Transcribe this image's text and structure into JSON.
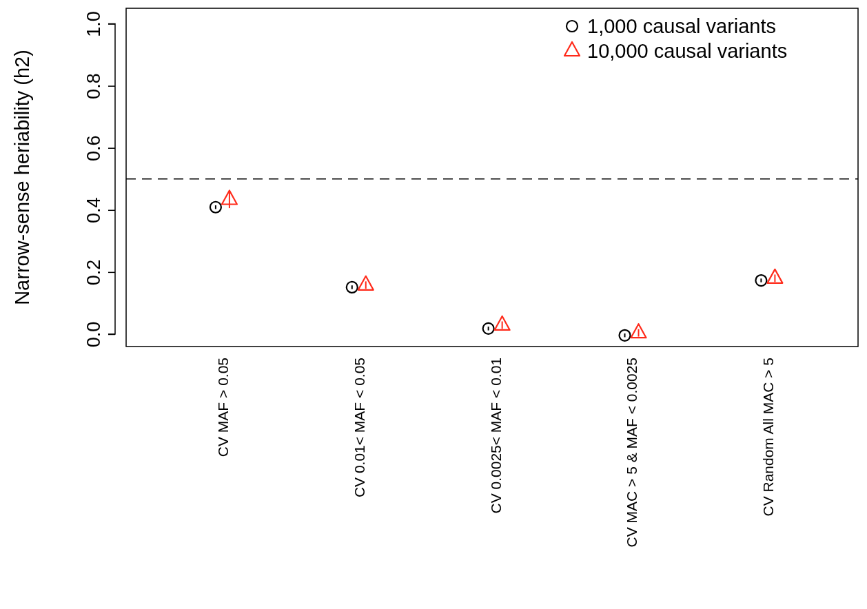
{
  "chart_data": {
    "type": "scatter",
    "ylabel": "Narrow-sense heriability (h2)",
    "categories": [
      "CV MAF > 0.05",
      "CV 0.01< MAF < 0.05",
      "CV 0.0025< MAF < 0.01",
      "CV MAC > 5 & MAF < 0.0025",
      "CV Random All MAC > 5"
    ],
    "series": [
      {
        "name": "1,000 causal variants",
        "color": "#000000",
        "marker": "circle",
        "values": [
          0.409,
          0.151,
          0.018,
          -0.004,
          0.173
        ],
        "errors": [
          0.006,
          0.006,
          0.006,
          0.006,
          0.006
        ]
      },
      {
        "name": "10,000 causal variants",
        "color": "#ff2a1a",
        "marker": "triangle",
        "values": [
          0.434,
          0.158,
          0.029,
          0.004,
          0.18
        ],
        "errors": [
          0.028,
          0.012,
          0.012,
          0.012,
          0.012
        ]
      }
    ],
    "ylim": [
      -0.04,
      1.05
    ],
    "yticks": [
      {
        "value": 0,
        "label": "0.0"
      },
      0.2,
      0.4,
      0.6,
      0.8,
      {
        "value": 1,
        "label": "1.0"
      }
    ],
    "ref_lines": [
      {
        "axis": "y",
        "value": 0.5,
        "color": "#000000",
        "line_style": "dashed"
      }
    ],
    "grid": false,
    "legend": "top right"
  }
}
